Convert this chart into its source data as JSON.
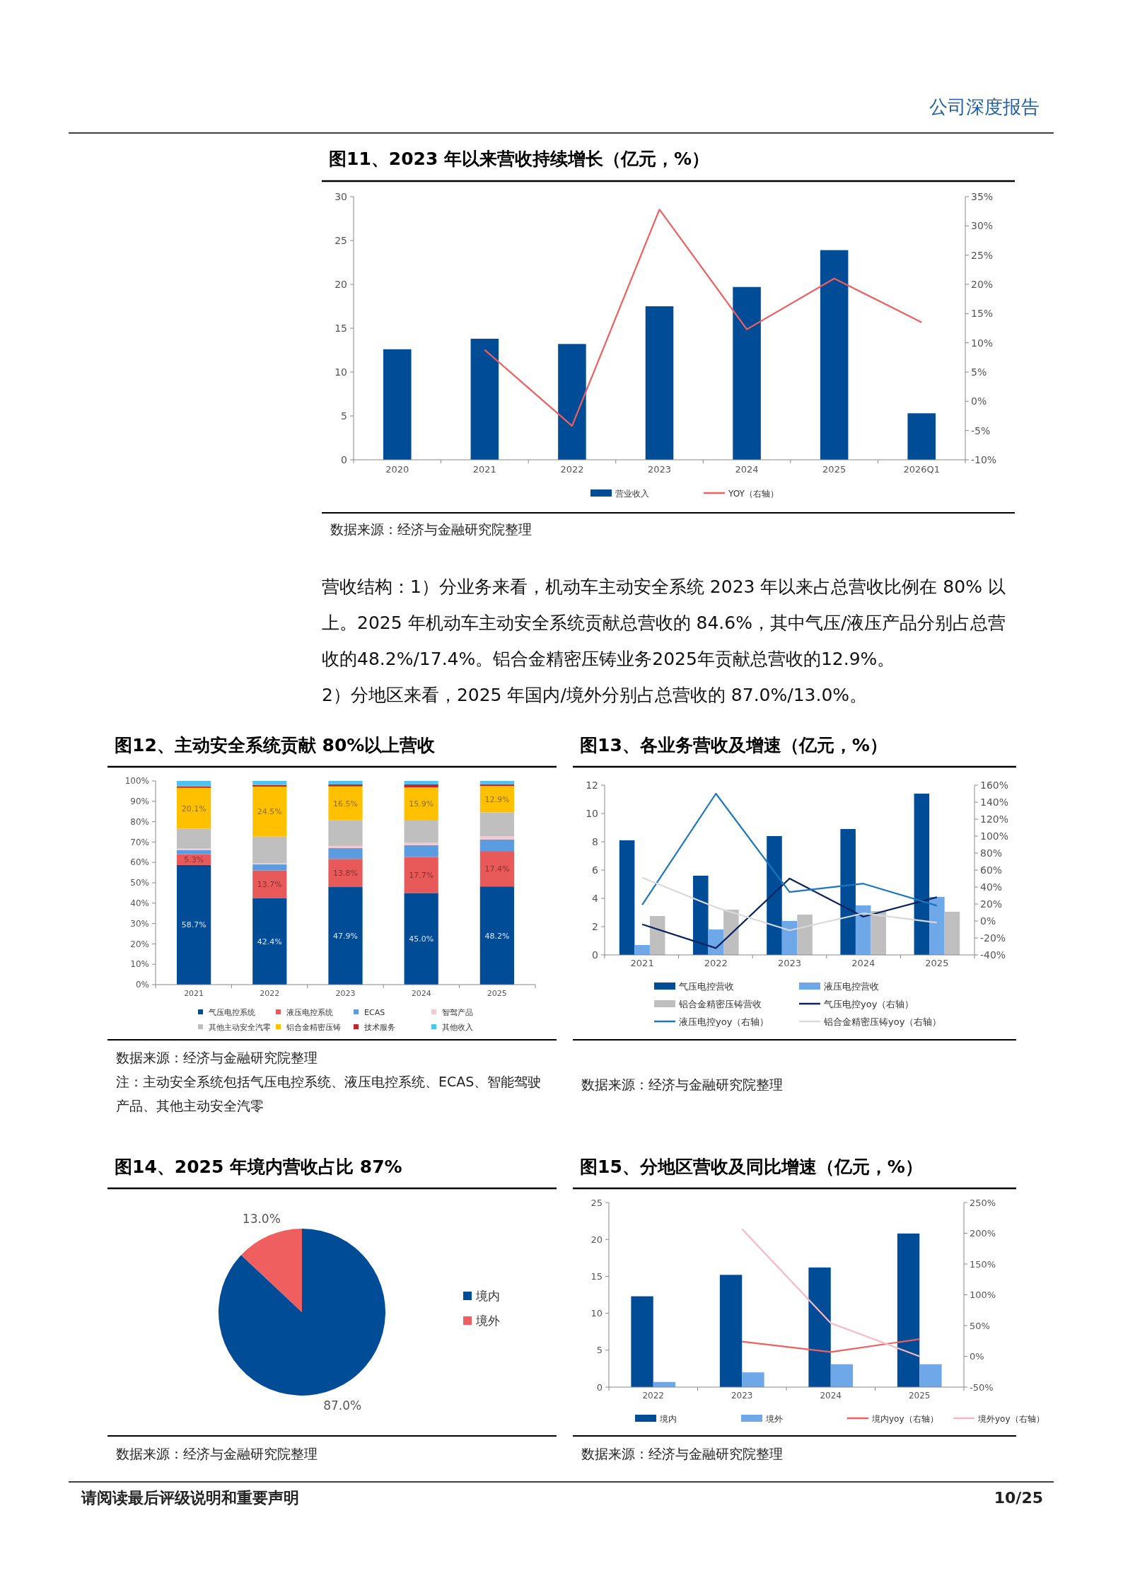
{
  "chart_data": [
    {
      "type": "other",
      "annotations": [
        "公司深度报告"
      ]
    },
    {
      "type": "bar",
      "title": "图11、2023 年以来营收持续增长（亿元，%）",
      "categories": [
        "2020",
        "2021",
        "2022",
        "2023",
        "2024",
        "2025",
        "2026Q1"
      ],
      "series": [
        {
          "name": "营业收入",
          "color": "#004c97",
          "values": [
            12.6,
            13.8,
            13.2,
            17.5,
            19.7,
            23.9,
            5.3
          ]
        },
        {
          "name": "YOY（右轴）",
          "type": "line",
          "axis": "y2",
          "color": "#ef5f5f",
          "values": [
            null,
            8.8,
            -4.2,
            32.8,
            12.3,
            21.0,
            13.5
          ]
        }
      ],
      "ylim": [
        0,
        30
      ],
      "yticks": [
        0,
        5,
        10,
        15,
        20,
        25,
        30
      ],
      "y2lim": [
        -10,
        35
      ],
      "y2ticks": [
        {
          "value": -10,
          "label": "-10%"
        },
        {
          "value": -5,
          "label": "-5%"
        },
        {
          "value": 0,
          "label": "0%"
        },
        {
          "value": 5,
          "label": "5%"
        },
        {
          "value": 10,
          "label": "10%"
        },
        {
          "value": 15,
          "label": "15%"
        },
        {
          "value": 20,
          "label": "20%"
        },
        {
          "value": 25,
          "label": "25%"
        },
        {
          "value": 30,
          "label": "30%"
        },
        {
          "value": 35,
          "label": "35%"
        }
      ],
      "legend": "bottom",
      "annotations": [
        "数据来源：经济与金融研究院整理"
      ]
    },
    {
      "type": "other",
      "annotations": [
        "营收结构：1）分业务来看，机动车主动安全系统 2023 年以来占总营收比例在 80% 以上。2025 年机动车主动安全系统贡献总营收的 84.6%，其中气压/液压产品分别占总营收的48.2%/17.4%。铝合金精密压铸业务2025年贡献总营收的12.9%。",
        "2）分地区来看，2025 年国内/境外分别占总营收的 87.0%/13.0%。"
      ]
    },
    {
      "type": "bar",
      "stacked": true,
      "title": "图12、主动安全系统贡献 80%以上营收",
      "categories": [
        "2021",
        "2022",
        "2023",
        "2024",
        "2025"
      ],
      "series": [
        {
          "name": "气压电控系统",
          "color": "#004c97",
          "values": [
            58.7,
            42.4,
            47.9,
            45.0,
            48.2
          ],
          "value_labels": [
            "58.7%",
            "42.4%",
            "47.9%",
            "45.0%",
            "48.2%"
          ]
        },
        {
          "name": "液压电控系统",
          "color": "#e85a5a",
          "values": [
            5.3,
            13.7,
            13.8,
            17.7,
            17.4
          ],
          "value_labels": [
            "5.3%",
            "13.7%",
            "13.8%",
            "17.7%",
            "17.4%"
          ]
        },
        {
          "name": "ECAS",
          "color": "#5b9be0",
          "values": [
            2.0,
            2.9,
            5.3,
            5.8,
            5.6
          ]
        },
        {
          "name": "智驾产品",
          "color": "#f2c9d2",
          "values": [
            0.8,
            0.6,
            1.1,
            1.2,
            1.6
          ]
        },
        {
          "name": "其他主动安全汽零",
          "color": "#bfbfbf",
          "values": [
            9.7,
            13.1,
            12.7,
            11.2,
            11.8
          ]
        },
        {
          "name": "铝合金精密压铸",
          "color": "#ffc000",
          "values": [
            20.1,
            24.5,
            16.5,
            15.9,
            12.9
          ],
          "value_labels": [
            "20.1%",
            "24.5%",
            "16.5%",
            "15.9%",
            "12.9%"
          ]
        },
        {
          "name": "技术服务",
          "color": "#c0272d",
          "values": [
            0.7,
            0.8,
            1.0,
            1.5,
            0.9
          ]
        },
        {
          "name": "其他收入",
          "color": "#4fc3f0",
          "values": [
            2.7,
            2.0,
            1.7,
            1.7,
            1.6
          ]
        }
      ],
      "ylim": [
        0,
        100
      ],
      "yticks": [
        {
          "value": 0,
          "label": "0%"
        },
        {
          "value": 10,
          "label": "10%"
        },
        {
          "value": 20,
          "label": "20%"
        },
        {
          "value": 30,
          "label": "30%"
        },
        {
          "value": 40,
          "label": "40%"
        },
        {
          "value": 50,
          "label": "50%"
        },
        {
          "value": 60,
          "label": "60%"
        },
        {
          "value": 70,
          "label": "70%"
        },
        {
          "value": 80,
          "label": "80%"
        },
        {
          "value": 90,
          "label": "90%"
        },
        {
          "value": 100,
          "label": "100%"
        }
      ],
      "legend": "bottom",
      "annotations": [
        "数据来源：经济与金融研究院整理",
        "注：主动安全系统包括气压电控系统、液压电控系统、ECAS、智能驾驶产品、其他主动安全汽零"
      ]
    },
    {
      "type": "bar",
      "title": "图13、各业务营收及增速（亿元，%）",
      "categories": [
        "2021",
        "2022",
        "2023",
        "2024",
        "2025"
      ],
      "series": [
        {
          "name": "气压电控营收",
          "color": "#004c97",
          "values": [
            8.1,
            5.6,
            8.4,
            8.9,
            11.4
          ]
        },
        {
          "name": "液压电控营收",
          "color": "#6fa8e8",
          "values": [
            0.7,
            1.8,
            2.4,
            3.5,
            4.1
          ]
        },
        {
          "name": "铝合金精密压铸营收",
          "color": "#bfbfbf",
          "values": [
            2.75,
            3.2,
            2.85,
            3.1,
            3.05
          ]
        },
        {
          "name": "气压电控yoy（右轴）",
          "type": "line",
          "axis": "y2",
          "color": "#0a2160",
          "values": [
            -4,
            -32,
            50,
            5,
            28
          ]
        },
        {
          "name": "液压电控yoy（右轴）",
          "type": "line",
          "axis": "y2",
          "color": "#1c75c0",
          "values": [
            19,
            150,
            34,
            44,
            18
          ]
        },
        {
          "name": "铝合金精密压铸yoy（右轴）",
          "type": "line",
          "axis": "y2",
          "color": "#d9d9d9",
          "values": [
            51,
            16,
            -11,
            9,
            -2
          ]
        }
      ],
      "ylim": [
        0,
        12
      ],
      "yticks": [
        0,
        2,
        4,
        6,
        8,
        10,
        12
      ],
      "y2lim": [
        -40,
        160
      ],
      "y2ticks": [
        {
          "value": -40,
          "label": "-40%"
        },
        {
          "value": -20,
          "label": "-20%"
        },
        {
          "value": 0,
          "label": "0%"
        },
        {
          "value": 20,
          "label": "20%"
        },
        {
          "value": 40,
          "label": "40%"
        },
        {
          "value": 60,
          "label": "60%"
        },
        {
          "value": 80,
          "label": "80%"
        },
        {
          "value": 100,
          "label": "100%"
        },
        {
          "value": 120,
          "label": "120%"
        },
        {
          "value": 140,
          "label": "140%"
        },
        {
          "value": 160,
          "label": "160%"
        }
      ],
      "legend": "bottom",
      "annotations": [
        "数据来源：经济与金融研究院整理"
      ]
    },
    {
      "type": "pie",
      "title": "图14、2025 年境内营收占比 87%",
      "categories": [
        "境内",
        "境外"
      ],
      "values": [
        87.0,
        13.0
      ],
      "colors": [
        "#004c97",
        "#ef5f5f"
      ],
      "value_labels": [
        "87.0%",
        "13.0%"
      ],
      "legend": "right",
      "annotations": [
        "数据来源：经济与金融研究院整理"
      ]
    },
    {
      "type": "bar",
      "title": "图15、分地区营收及同比增速（亿元，%）",
      "categories": [
        "2022",
        "2023",
        "2024",
        "2025"
      ],
      "series": [
        {
          "name": "境内",
          "color": "#004c97",
          "values": [
            12.3,
            15.2,
            16.2,
            20.8
          ]
        },
        {
          "name": "境外",
          "color": "#6fa8e8",
          "values": [
            0.7,
            2.0,
            3.1,
            3.1
          ]
        },
        {
          "name": "境内yoy（右轴）",
          "type": "line",
          "axis": "y2",
          "color": "#ef5f5f",
          "values": [
            null,
            24,
            7,
            28
          ]
        },
        {
          "name": "境外yoy（右轴）",
          "type": "line",
          "axis": "y2",
          "color": "#f7b8c4",
          "values": [
            null,
            207,
            54,
            0
          ]
        }
      ],
      "ylim": [
        0,
        25
      ],
      "yticks": [
        0,
        5,
        10,
        15,
        20,
        25
      ],
      "y2lim": [
        -50,
        250
      ],
      "y2ticks": [
        {
          "value": -50,
          "label": "-50%"
        },
        {
          "value": 0,
          "label": "0%"
        },
        {
          "value": 50,
          "label": "50%"
        },
        {
          "value": 100,
          "label": "100%"
        },
        {
          "value": 150,
          "label": "150%"
        },
        {
          "value": 200,
          "label": "200%"
        },
        {
          "value": 250,
          "label": "250%"
        }
      ],
      "legend": "bottom",
      "annotations": [
        "数据来源：经济与金融研究院整理"
      ]
    },
    {
      "type": "other",
      "annotations": [
        "请阅读最后评级说明和重要声明",
        "10/25"
      ]
    }
  ]
}
